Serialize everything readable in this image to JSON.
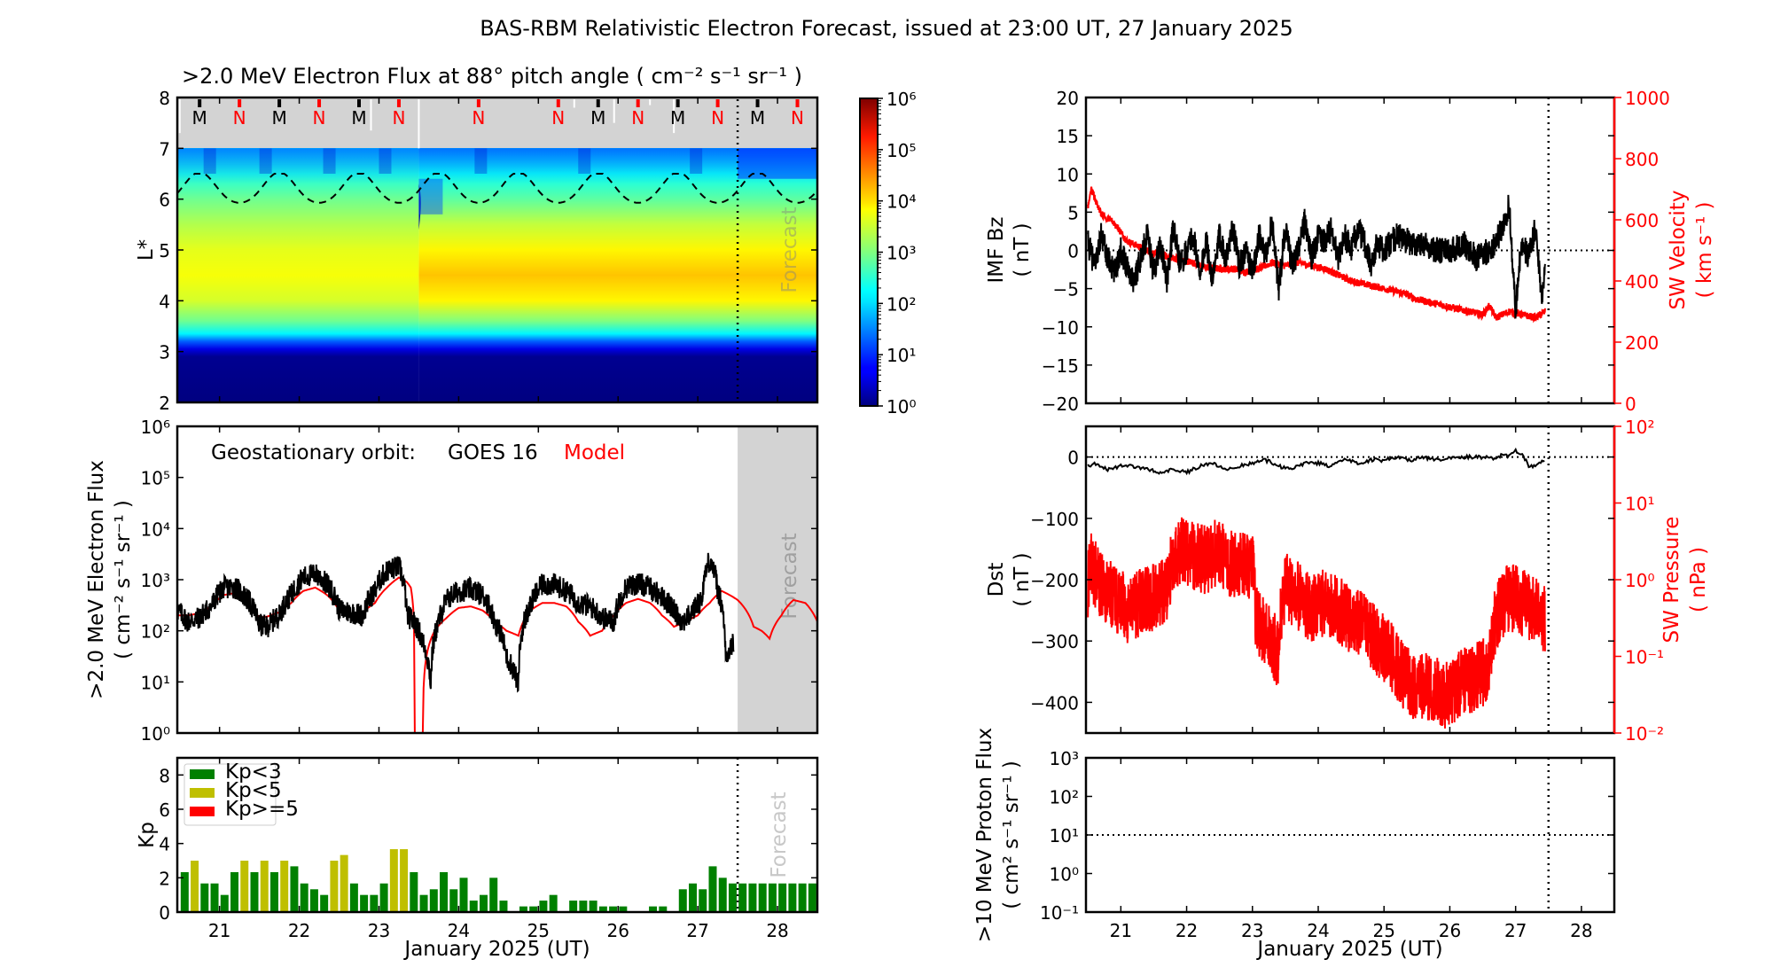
{
  "figure": {
    "title": "BAS-RBM Relativistic Electron Forecast, issued at 23:00 UT, 27 January 2025",
    "forecast_label": "Forecast",
    "forecast_start_day": 27.5,
    "xlabel": "January 2025 (UT)",
    "x_range": [
      20.47,
      28.5
    ],
    "x_ticks": [
      "21",
      "22",
      "23",
      "24",
      "25",
      "26",
      "27",
      "28"
    ],
    "colors": {
      "observed": "#000000",
      "model": "#ff0000",
      "forecast_shade": "#d3d3d3",
      "kp_low": "#008000",
      "kp_mid": "#bfbf00",
      "kp_high": "#ff0000"
    }
  },
  "chart_data": [
    {
      "id": "lstar-spectrogram",
      "type": "heatmap",
      "title": ">2.0 MeV Electron Flux at 88° pitch angle ( cm⁻² s⁻¹ sr⁻¹ )",
      "ylabel": "L*",
      "ylim": [
        2,
        8
      ],
      "y_ticks": [
        "2",
        "3",
        "4",
        "5",
        "6",
        "7",
        "8"
      ],
      "no_data_region_L": [
        7,
        8
      ],
      "colorbar": {
        "scale": "log",
        "range": [
          1,
          1000000
        ],
        "ticks": [
          "10⁰",
          "10¹",
          "10²",
          "10³",
          "10⁴",
          "10⁵",
          "10⁶"
        ],
        "colormap": "jet"
      },
      "log_flux_profile_by_L": {
        "L": [
          2.0,
          2.9,
          3.05,
          3.2,
          3.35,
          3.6,
          4.0,
          4.5,
          5.0,
          5.5,
          6.0,
          6.5,
          7.0
        ],
        "before_day_23_5": [
          0.0,
          0.1,
          0.6,
          1.3,
          2.2,
          2.9,
          3.5,
          3.7,
          3.6,
          3.3,
          2.9,
          2.4,
          1.9
        ],
        "after_day_23_5": [
          0.0,
          0.1,
          0.6,
          1.3,
          2.2,
          3.0,
          3.8,
          4.1,
          3.8,
          3.4,
          2.8,
          2.3,
          1.7
        ]
      },
      "geo_orbit_L_dashed": {
        "min": 5.9,
        "max": 6.5,
        "period_days": 1.0,
        "peak_first_day": 20.75
      },
      "mlt_markers": [
        {
          "day": 20.75,
          "label": "M"
        },
        {
          "day": 21.25,
          "label": "N"
        },
        {
          "day": 21.75,
          "label": "M"
        },
        {
          "day": 22.25,
          "label": "N"
        },
        {
          "day": 22.75,
          "label": "M"
        },
        {
          "day": 23.25,
          "label": "N"
        },
        {
          "day": 24.25,
          "label": "N"
        },
        {
          "day": 25.25,
          "label": "N"
        },
        {
          "day": 25.75,
          "label": "M"
        },
        {
          "day": 26.25,
          "label": "N"
        },
        {
          "day": 26.75,
          "label": "M"
        },
        {
          "day": 27.25,
          "label": "N"
        },
        {
          "day": 27.75,
          "label": "M"
        },
        {
          "day": 28.25,
          "label": "N"
        }
      ]
    },
    {
      "id": "geo-flux",
      "type": "line",
      "ylabel": ">2.0 MeV Electron Flux",
      "ylabel_units": "( cm⁻² s⁻¹ sr⁻¹ )",
      "yscale": "log",
      "ylim": [
        1,
        1000000
      ],
      "y_ticks": [
        "10⁰",
        "10¹",
        "10²",
        "10³",
        "10⁴",
        "10⁵",
        "10⁶"
      ],
      "annotation": "Geostationary orbit:",
      "legend": [
        {
          "name": "GOES 16",
          "color": "#000000"
        },
        {
          "name": "Model",
          "color": "#ff0000"
        }
      ],
      "series": [
        {
          "name": "GOES 16",
          "x": [
            20.47,
            20.6,
            20.75,
            20.9,
            21.05,
            21.2,
            21.35,
            21.5,
            21.6,
            21.75,
            21.9,
            22.05,
            22.2,
            22.35,
            22.5,
            22.65,
            22.8,
            22.95,
            23.1,
            23.25,
            23.35,
            23.45,
            23.55,
            23.65,
            23.75,
            23.85,
            24.0,
            24.15,
            24.3,
            24.45,
            24.6,
            24.75,
            24.9,
            25.05,
            25.2,
            25.35,
            25.5,
            25.65,
            25.8,
            25.95,
            26.1,
            26.25,
            26.4,
            26.55,
            26.7,
            26.8,
            26.9,
            27.05,
            27.15,
            27.25,
            27.35,
            27.45
          ],
          "y": [
            250,
            150,
            180,
            300,
            700,
            700,
            400,
            130,
            120,
            200,
            500,
            1100,
            1300,
            800,
            260,
            230,
            200,
            600,
            1500,
            1800,
            200,
            140,
            60,
            8,
            150,
            400,
            600,
            650,
            500,
            150,
            30,
            8,
            300,
            800,
            800,
            600,
            350,
            300,
            180,
            150,
            700,
            850,
            700,
            450,
            250,
            150,
            200,
            400,
            2500,
            600,
            20,
            60
          ]
        },
        {
          "name": "Model",
          "x": [
            20.47,
            20.6,
            20.75,
            20.9,
            21.05,
            21.2,
            21.35,
            21.5,
            21.6,
            21.75,
            21.9,
            22.05,
            22.2,
            22.35,
            22.5,
            22.65,
            22.8,
            22.95,
            23.1,
            23.25,
            23.35,
            23.4,
            23.45,
            23.55,
            23.7,
            23.85,
            24.0,
            24.15,
            24.3,
            24.45,
            24.6,
            24.75,
            24.9,
            25.05,
            25.2,
            25.35,
            25.5,
            25.65,
            25.8,
            25.95,
            26.1,
            26.25,
            26.4,
            26.55,
            26.7,
            26.85,
            27.0,
            27.15,
            27.3,
            27.5,
            27.7,
            27.8,
            27.9,
            28.05,
            28.2,
            28.35,
            28.5
          ],
          "y": [
            200,
            200,
            220,
            300,
            500,
            550,
            300,
            180,
            190,
            230,
            350,
            600,
            700,
            500,
            250,
            200,
            230,
            350,
            700,
            1100,
            900,
            700,
            1,
            1,
            100,
            180,
            280,
            300,
            250,
            150,
            100,
            80,
            250,
            350,
            350,
            300,
            150,
            80,
            100,
            200,
            350,
            420,
            350,
            200,
            120,
            150,
            200,
            350,
            600,
            400,
            120,
            100,
            70,
            200,
            400,
            350,
            150
          ]
        }
      ]
    },
    {
      "id": "kp",
      "type": "bar",
      "ylabel": "Kp",
      "ylim": [
        0,
        9
      ],
      "y_ticks": [
        "0",
        "2",
        "4",
        "6",
        "8"
      ],
      "bar_interval_hours": 3,
      "first_bar_center_day": 20.5625,
      "legend": [
        {
          "name": "Kp<3",
          "color": "#008000"
        },
        {
          "name": "Kp<5",
          "color": "#bfbf00"
        },
        {
          "name": "Kp>=5",
          "color": "#ff0000"
        }
      ],
      "legend_position": "top-left",
      "values": [
        2.33,
        3.0,
        1.67,
        1.67,
        1.0,
        2.33,
        3.0,
        2.33,
        3.0,
        2.33,
        3.0,
        2.67,
        1.67,
        1.33,
        1.0,
        3.0,
        3.33,
        1.67,
        1.0,
        1.0,
        1.67,
        3.67,
        3.67,
        2.33,
        1.0,
        1.33,
        2.33,
        1.33,
        2.0,
        0.67,
        1.0,
        2.0,
        0.67,
        0.0,
        0.33,
        0.33,
        0.67,
        1.0,
        0.0,
        0.67,
        0.67,
        0.67,
        0.33,
        0.33,
        0.33,
        0.0,
        0.0,
        0.33,
        0.33,
        0.0,
        1.33,
        1.67,
        1.33,
        2.67,
        2.0,
        1.67,
        1.67,
        1.67,
        1.67,
        1.67,
        1.67,
        1.67,
        1.67,
        1.67
      ]
    },
    {
      "id": "imf-bz-sw-velocity",
      "type": "line",
      "ylabel": "IMF Bz",
      "ylabel_units": "( nT )",
      "ylim": [
        -20,
        20
      ],
      "y_ticks": [
        "−20",
        "−15",
        "−10",
        "−5",
        "0",
        "5",
        "10",
        "15",
        "20"
      ],
      "y2label": "SW Velocity",
      "y2label_units": "( km s⁻¹ )",
      "y2lim": [
        0,
        1000
      ],
      "y2_ticks": [
        "0",
        "200",
        "400",
        "600",
        "800",
        "1000"
      ],
      "zero_line": 0,
      "series": [
        {
          "name": "IMF Bz",
          "axis": "left",
          "x": [
            20.5,
            20.6,
            20.7,
            20.8,
            20.9,
            21.0,
            21.1,
            21.2,
            21.3,
            21.4,
            21.5,
            21.6,
            21.7,
            21.8,
            21.9,
            22.0,
            22.1,
            22.2,
            22.3,
            22.4,
            22.5,
            22.6,
            22.7,
            22.8,
            22.9,
            23.0,
            23.1,
            23.2,
            23.3,
            23.4,
            23.5,
            23.6,
            23.7,
            23.8,
            23.9,
            24.0,
            24.1,
            24.2,
            24.3,
            24.4,
            24.5,
            24.6,
            24.7,
            24.8,
            24.9,
            25.0,
            25.2,
            25.4,
            25.6,
            25.8,
            26.0,
            26.2,
            26.4,
            26.6,
            26.7,
            26.8,
            26.9,
            27.0,
            27.05,
            27.1,
            27.2,
            27.3,
            27.4,
            27.45
          ],
          "y": [
            1,
            -2,
            2,
            -1,
            -3,
            0,
            -2,
            -4,
            -1,
            2,
            -3,
            1,
            -4,
            3,
            -2,
            0,
            2,
            -3,
            1,
            -4,
            2,
            -1,
            3,
            -2,
            0,
            -3,
            2,
            -1,
            4,
            -5,
            3,
            -2,
            0,
            4,
            -1,
            2,
            1,
            3,
            -1,
            2,
            0,
            3,
            1,
            -2,
            1,
            0,
            2,
            1,
            1,
            0,
            0,
            1,
            -1,
            0,
            1,
            3,
            6,
            -8,
            -2,
            1,
            -1,
            3,
            -6,
            -2
          ]
        },
        {
          "name": "SW Velocity",
          "axis": "right",
          "x": [
            20.5,
            20.55,
            20.7,
            20.9,
            21.1,
            21.3,
            21.5,
            21.7,
            21.9,
            22.1,
            22.3,
            22.5,
            22.7,
            22.9,
            23.1,
            23.3,
            23.5,
            23.7,
            23.9,
            24.1,
            24.3,
            24.5,
            24.7,
            24.9,
            25.1,
            25.3,
            25.5,
            25.7,
            25.9,
            26.1,
            26.3,
            26.5,
            26.6,
            26.7,
            26.9,
            27.1,
            27.3,
            27.45
          ],
          "y": [
            640,
            700,
            620,
            590,
            530,
            510,
            490,
            480,
            470,
            460,
            445,
            440,
            440,
            430,
            440,
            460,
            450,
            460,
            450,
            440,
            420,
            400,
            390,
            380,
            370,
            360,
            340,
            330,
            320,
            310,
            300,
            290,
            320,
            280,
            300,
            290,
            280,
            300
          ]
        }
      ]
    },
    {
      "id": "dst-sw-pressure",
      "type": "line",
      "ylabel": "Dst",
      "ylabel_units": "( nT )",
      "ylim": [
        -450,
        50
      ],
      "y_ticks": [
        "−400",
        "−300",
        "−200",
        "−100",
        "0"
      ],
      "y2label": "SW Pressure",
      "y2label_units": "( nPa )",
      "y2scale": "log",
      "y2lim": [
        0.01,
        100
      ],
      "y2_ticks": [
        "10⁻²",
        "10⁻¹",
        "10⁰",
        "10¹",
        "10²"
      ],
      "zero_line": 0,
      "series": [
        {
          "name": "Dst",
          "axis": "left",
          "x": [
            20.5,
            20.6,
            20.8,
            21.0,
            21.2,
            21.4,
            21.6,
            21.8,
            22.0,
            22.2,
            22.4,
            22.6,
            22.8,
            23.0,
            23.2,
            23.4,
            23.6,
            23.8,
            24.0,
            24.2,
            24.4,
            24.6,
            24.8,
            25.0,
            25.2,
            25.4,
            25.6,
            25.8,
            26.0,
            26.2,
            26.4,
            26.6,
            26.7,
            26.8,
            26.9,
            27.0,
            27.1,
            27.2,
            27.3,
            27.45
          ],
          "y": [
            -15,
            -10,
            -20,
            -15,
            -15,
            -20,
            -25,
            -20,
            -25,
            -15,
            -10,
            -20,
            -15,
            -10,
            -5,
            -15,
            -20,
            -10,
            -10,
            -15,
            -5,
            -10,
            -5,
            -5,
            0,
            -5,
            0,
            -5,
            0,
            0,
            0,
            0,
            -5,
            5,
            0,
            10,
            5,
            -15,
            -15,
            -5
          ]
        },
        {
          "name": "SW Pressure",
          "axis": "right",
          "x": [
            20.5,
            20.55,
            20.7,
            20.9,
            21.1,
            21.3,
            21.5,
            21.7,
            21.9,
            22.1,
            22.3,
            22.5,
            22.6,
            22.7,
            22.9,
            23.0,
            23.05,
            23.2,
            23.4,
            23.5,
            23.7,
            23.9,
            24.1,
            24.3,
            24.5,
            24.7,
            24.9,
            25.1,
            25.3,
            25.5,
            25.7,
            25.9,
            26.1,
            26.3,
            26.5,
            26.6,
            26.7,
            26.9,
            27.1,
            27.3,
            27.45
          ],
          "y": [
            0.8,
            1.5,
            0.8,
            0.6,
            0.4,
            0.5,
            0.6,
            0.8,
            2.5,
            2.0,
            1.8,
            2.5,
            1.5,
            1.6,
            1.5,
            1.5,
            0.3,
            0.2,
            0.1,
            0.8,
            0.6,
            0.4,
            0.5,
            0.4,
            0.3,
            0.25,
            0.15,
            0.1,
            0.05,
            0.04,
            0.04,
            0.03,
            0.04,
            0.05,
            0.06,
            0.08,
            0.3,
            0.6,
            0.5,
            0.4,
            0.3
          ]
        }
      ]
    },
    {
      "id": "proton-flux",
      "type": "line",
      "ylabel": ">10 MeV Proton Flux",
      "ylabel_units": "( cm² s⁻¹ sr⁻¹ )",
      "yscale": "log",
      "ylim": [
        0.1,
        1000
      ],
      "y_ticks": [
        "10⁻¹",
        "10⁰",
        "10¹",
        "10²",
        "10³"
      ],
      "threshold_line": 10,
      "series": []
    }
  ]
}
